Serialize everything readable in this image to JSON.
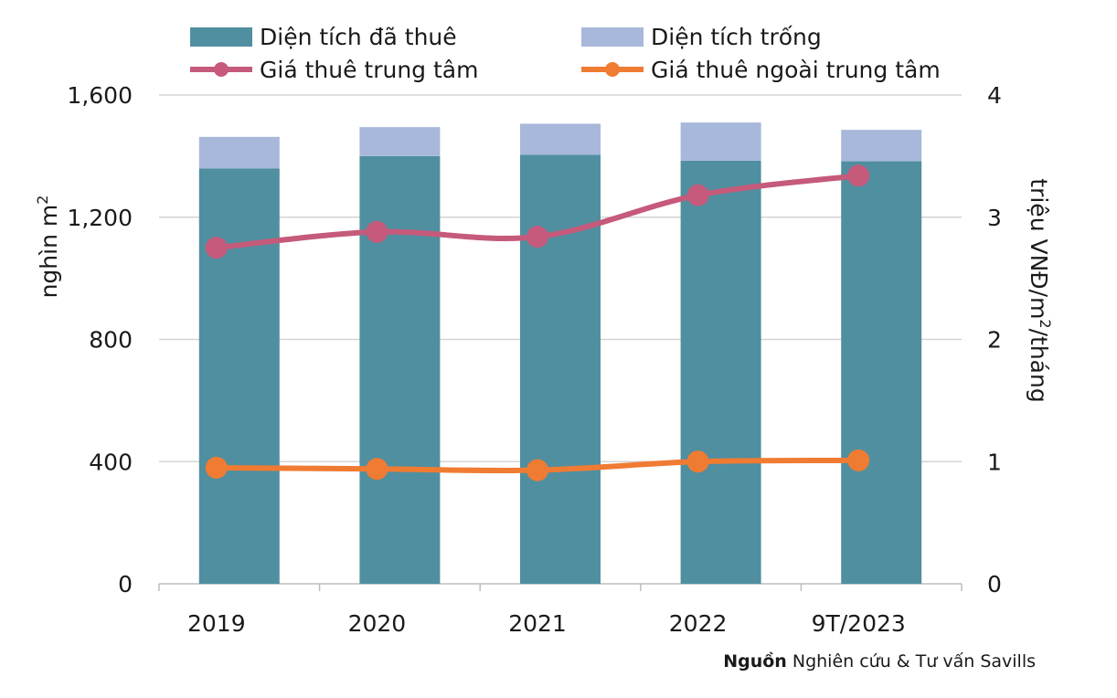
{
  "chart_data": {
    "type": "bar",
    "stacked": true,
    "categories": [
      "2019",
      "2020",
      "2021",
      "2022",
      "9T/2023"
    ],
    "series": [
      {
        "name": "Diện tích đã thuê",
        "type": "bar",
        "axis": "left",
        "color": "#508fa0",
        "values": [
          1360,
          1400,
          1404,
          1385,
          1383
        ]
      },
      {
        "name": "Diện tích trống",
        "type": "bar",
        "axis": "left",
        "color": "#a7b8da",
        "values": [
          103,
          95,
          102,
          125,
          103
        ]
      },
      {
        "name": "Giá thuê trung tâm",
        "type": "line",
        "axis": "right",
        "color": "#c55a7b",
        "values": [
          2.75,
          2.88,
          2.84,
          3.18,
          3.34
        ]
      },
      {
        "name": "Giá thuê ngoài trung tâm",
        "type": "line",
        "axis": "right",
        "color": "#f07b32",
        "values": [
          0.95,
          0.94,
          0.93,
          1.0,
          1.01
        ]
      }
    ],
    "y_left": {
      "label": "nghìn m",
      "label_sup": "2",
      "range": [
        0,
        1600
      ],
      "ticks": [
        0,
        400,
        800,
        1200,
        1600
      ],
      "tick_labels": [
        "0",
        "400",
        "800",
        "1,200",
        "1,600"
      ]
    },
    "y_right": {
      "label_pre": "triệu VNĐ/m",
      "label_sup": "2",
      "label_post": "/tháng",
      "range": [
        0,
        4
      ],
      "ticks": [
        0,
        1,
        2,
        3,
        4
      ],
      "tick_labels": [
        "0",
        "1",
        "2",
        "3",
        "4"
      ]
    },
    "grid": true,
    "legend_position": "top"
  },
  "source": {
    "bold": "Nguồn",
    "text": " Nghiên cứu & Tư vấn Savills"
  }
}
